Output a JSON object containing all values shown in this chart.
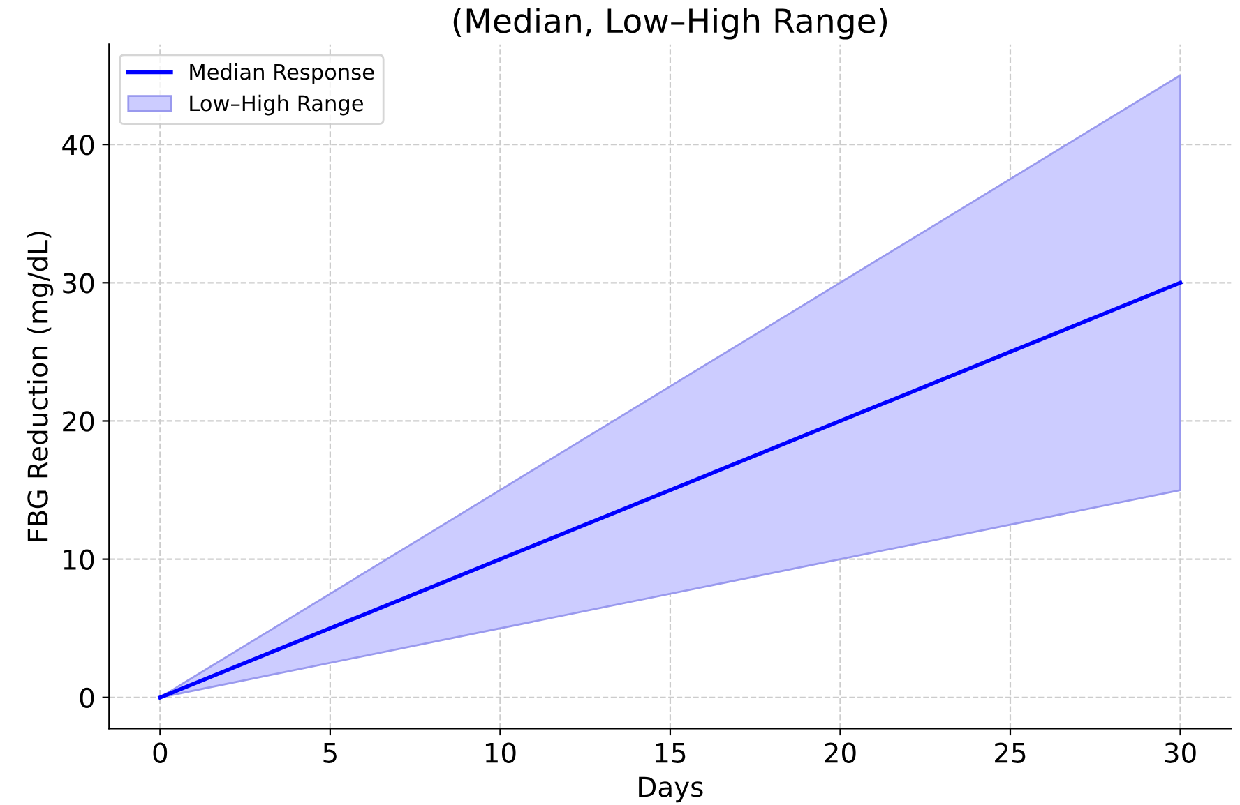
{
  "chart_data": {
    "type": "line",
    "title": "(Median, Low–High Range)",
    "xlabel": "Days",
    "ylabel": "FBG Reduction (mg/dL)",
    "x": [
      0,
      30
    ],
    "series": [
      {
        "name": "Median Response",
        "color": "#0000ff",
        "values": [
          0,
          30
        ]
      },
      {
        "name": "Low–High Range",
        "color": "#ccccff",
        "values": [
          null,
          null
        ],
        "lower": [
          0,
          15
        ],
        "upper": [
          0,
          45
        ]
      }
    ],
    "xlim": [
      -1.5,
      31.5
    ],
    "xticks": [
      0,
      5,
      10,
      15,
      20,
      25,
      30
    ],
    "ylim": [
      -2.25,
      47.25
    ],
    "yticks": [
      0,
      10,
      20,
      30,
      40
    ],
    "grid": true,
    "legend": "top left",
    "line_style": "solid",
    "marker": "none"
  }
}
